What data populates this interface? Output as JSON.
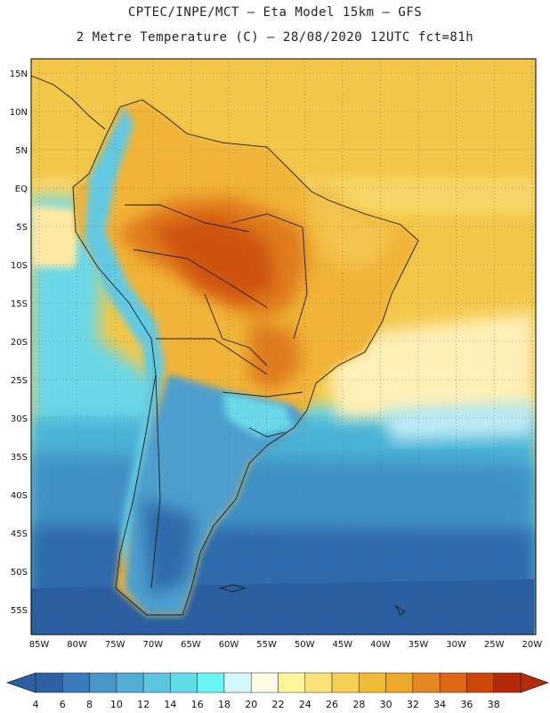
{
  "header": {
    "line1": "CPTEC/INPE/MCT –  Eta Model 15km – GFS",
    "line2": "2 Metre Temperature (C) – 28/08/2020 12UTC fct=81h"
  },
  "map": {
    "lat_labels": [
      "15N",
      "10N",
      "5N",
      "EQ",
      "5S",
      "10S",
      "15S",
      "20S",
      "25S",
      "30S",
      "35S",
      "40S",
      "45S",
      "50S",
      "55S"
    ],
    "lon_labels": [
      "85W",
      "80W",
      "75W",
      "70W",
      "65W",
      "60W",
      "55W",
      "50W",
      "45W",
      "40W",
      "35W",
      "30W",
      "25W",
      "20W"
    ]
  },
  "colorbar": {
    "labels": [
      "4",
      "6",
      "8",
      "10",
      "12",
      "14",
      "16",
      "18",
      "20",
      "22",
      "24",
      "26",
      "28",
      "30",
      "32",
      "34",
      "36",
      "38"
    ],
    "colors": [
      "#2c5fa4",
      "#3a7bbd",
      "#4a96c9",
      "#52aed6",
      "#5cc6e0",
      "#63dcea",
      "#6cf3f3",
      "#d4f8fa",
      "#fffbe4",
      "#fff59a",
      "#fbe278",
      "#f6cf55",
      "#f0bc38",
      "#eda828",
      "#e78722",
      "#de6614",
      "#cd4508",
      "#b52a0b"
    ]
  }
}
